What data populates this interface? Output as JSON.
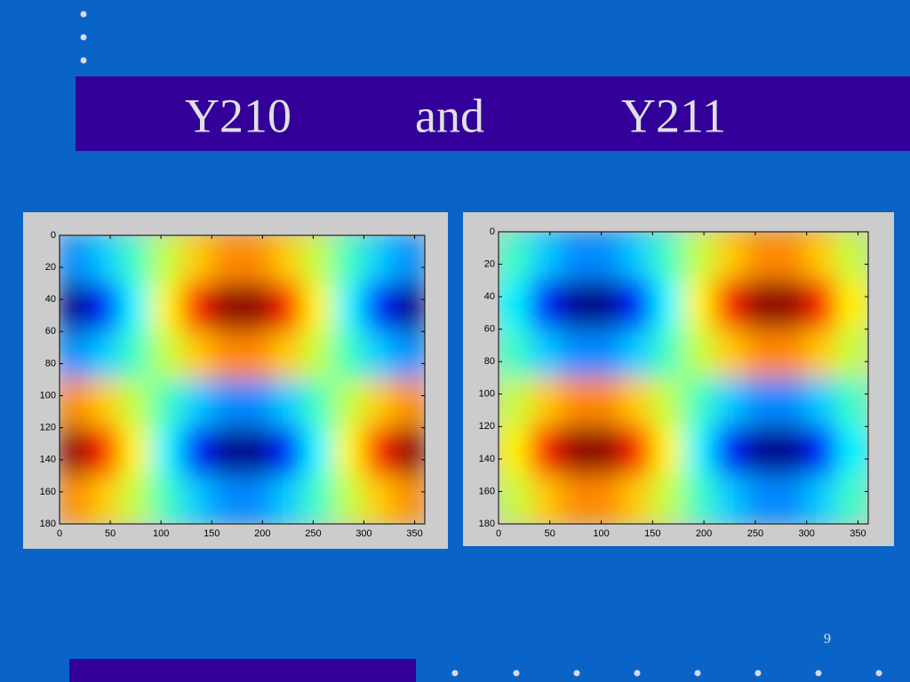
{
  "slide": {
    "title_parts": [
      "Y210",
      "and",
      "Y211"
    ],
    "page_number": "9"
  },
  "chart_data": [
    {
      "type": "heatmap",
      "colormap": "jet",
      "clim": [
        -1,
        1
      ],
      "y_inverted": true,
      "xlim": [
        0,
        360
      ],
      "ylim": [
        0,
        180
      ],
      "xticks": [
        0,
        50,
        100,
        150,
        200,
        250,
        300,
        350
      ],
      "yticks": [
        0,
        20,
        40,
        60,
        80,
        100,
        120,
        140,
        160,
        180
      ],
      "x": [
        15,
        45,
        75,
        105,
        135,
        165,
        195,
        225,
        255,
        285,
        315,
        345
      ],
      "y": [
        15,
        45,
        75,
        105,
        135,
        165
      ],
      "values": [
        [
          -0.48,
          -0.35,
          -0.13,
          0.13,
          0.35,
          0.48,
          0.48,
          0.35,
          0.13,
          -0.13,
          -0.35,
          -0.48
        ],
        [
          -0.97,
          -0.71,
          -0.26,
          0.26,
          0.71,
          0.97,
          0.97,
          0.71,
          0.26,
          -0.26,
          -0.71,
          -0.97
        ],
        [
          -0.48,
          -0.35,
          -0.13,
          0.13,
          0.35,
          0.48,
          0.48,
          0.35,
          0.13,
          -0.13,
          -0.35,
          -0.48
        ],
        [
          0.48,
          0.35,
          0.13,
          -0.13,
          -0.35,
          -0.48,
          -0.48,
          -0.35,
          -0.13,
          0.13,
          0.35,
          0.48
        ],
        [
          0.97,
          0.71,
          0.26,
          -0.26,
          -0.71,
          -0.97,
          -0.97,
          -0.71,
          -0.26,
          0.26,
          0.71,
          0.97
        ],
        [
          0.48,
          0.35,
          0.13,
          -0.13,
          -0.35,
          -0.48,
          -0.48,
          -0.35,
          -0.13,
          0.13,
          0.35,
          0.48
        ]
      ]
    },
    {
      "type": "heatmap",
      "colormap": "jet",
      "clim": [
        -1,
        1
      ],
      "y_inverted": true,
      "xlim": [
        0,
        360
      ],
      "ylim": [
        0,
        180
      ],
      "xticks": [
        0,
        50,
        100,
        150,
        200,
        250,
        300,
        350
      ],
      "yticks": [
        0,
        20,
        40,
        60,
        80,
        100,
        120,
        140,
        160,
        180
      ],
      "x": [
        15,
        45,
        75,
        105,
        135,
        165,
        195,
        225,
        255,
        285,
        315,
        345
      ],
      "y": [
        15,
        45,
        75,
        105,
        135,
        165
      ],
      "values": [
        [
          -0.13,
          -0.35,
          -0.48,
          -0.48,
          -0.35,
          -0.13,
          0.13,
          0.35,
          0.48,
          0.48,
          0.35,
          0.13
        ],
        [
          -0.26,
          -0.71,
          -0.97,
          -0.97,
          -0.71,
          -0.26,
          0.26,
          0.71,
          0.97,
          0.97,
          0.71,
          0.26
        ],
        [
          -0.13,
          -0.35,
          -0.48,
          -0.48,
          -0.35,
          -0.13,
          0.13,
          0.35,
          0.48,
          0.48,
          0.35,
          0.13
        ],
        [
          0.13,
          0.35,
          0.48,
          0.48,
          0.35,
          0.13,
          -0.13,
          -0.35,
          -0.48,
          -0.48,
          -0.35,
          -0.13
        ],
        [
          0.26,
          0.71,
          0.97,
          0.97,
          0.71,
          0.26,
          -0.26,
          -0.71,
          -0.97,
          -0.97,
          -0.71,
          -0.26
        ],
        [
          0.13,
          0.35,
          0.48,
          0.48,
          0.35,
          0.13,
          -0.13,
          -0.35,
          -0.48,
          -0.48,
          -0.35,
          -0.13
        ]
      ]
    }
  ]
}
